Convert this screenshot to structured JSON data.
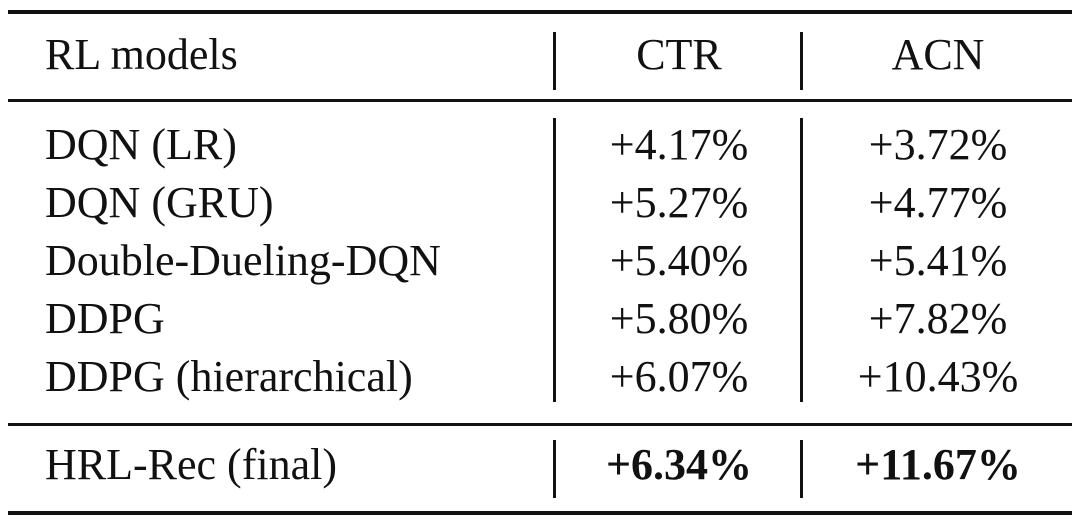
{
  "table": {
    "header": [
      "RL models",
      "CTR",
      "ACN"
    ],
    "rows": [
      [
        "DQN (LR)",
        "+4.17%",
        "+3.72%"
      ],
      [
        "DQN (GRU)",
        "+5.27%",
        "+4.77%"
      ],
      [
        "Double-Dueling-DQN",
        "+5.40%",
        "+5.41%"
      ],
      [
        "DDPG",
        "+5.80%",
        "+7.82%"
      ],
      [
        "DDPG (hierarchical)",
        "+6.07%",
        "+10.43%"
      ]
    ],
    "final_row": [
      "HRL-Rec (final)",
      "+6.34%",
      "+11.67%"
    ]
  }
}
